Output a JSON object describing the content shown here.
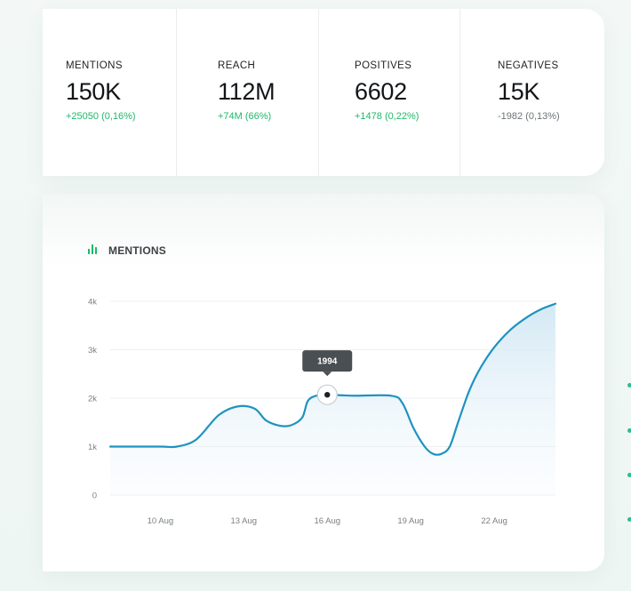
{
  "stats": [
    {
      "label": "MENTIONS",
      "value": "150K",
      "delta": "+25050 (0,16%)",
      "trend": "up"
    },
    {
      "label": "REACH",
      "value": "112M",
      "delta": "+74M (66%)",
      "trend": "up"
    },
    {
      "label": "POSITIVES",
      "value": "6602",
      "delta": "+1478 (0,22%)",
      "trend": "up"
    },
    {
      "label": "NEGATIVES",
      "value": "15K",
      "delta": "-1982 (0,13%)",
      "trend": "down"
    }
  ],
  "chart_panel": {
    "title": "MENTIONS",
    "icon": "bar-chart-icon"
  },
  "colors": {
    "accent_green": "#1fb86a",
    "line": "#1e93c0",
    "area": "#d9ecf6"
  },
  "chart_data": {
    "type": "area",
    "title": "",
    "xlabel": "",
    "ylabel": "",
    "x_tick_labels": [
      "10 Aug",
      "13 Aug",
      "16 Aug",
      "19 Aug",
      "22 Aug"
    ],
    "x_tick_values": [
      10,
      13,
      16,
      19,
      22
    ],
    "y_tick_labels": [
      "0",
      "1k",
      "2k",
      "3k",
      "4k"
    ],
    "y_tick_values": [
      0,
      1000,
      2000,
      3000,
      4000
    ],
    "xlim": [
      8.2,
      24.2
    ],
    "ylim": [
      0,
      4000
    ],
    "grid": true,
    "x": [
      8.2,
      10.0,
      10.6,
      11.3,
      12.1,
      12.8,
      13.4,
      13.8,
      14.3,
      14.7,
      15.1,
      15.3,
      15.6,
      16.0,
      16.5,
      17.0,
      18.3,
      18.7,
      19.1,
      19.5,
      19.8,
      20.1,
      20.4,
      20.7,
      21.1,
      21.5,
      22.0,
      22.6,
      23.2,
      23.7,
      24.2
    ],
    "values": [
      1000,
      1000,
      1000,
      1150,
      1650,
      1830,
      1780,
      1540,
      1430,
      1440,
      1600,
      1940,
      2050,
      2070,
      2060,
      2050,
      2050,
      1900,
      1380,
      1000,
      850,
      850,
      1000,
      1500,
      2150,
      2620,
      3050,
      3420,
      3680,
      3840,
      3950
    ],
    "highlight": {
      "x": 16.0,
      "y": 2070,
      "label": "1994"
    }
  },
  "decor": {
    "side_dots": 4
  }
}
